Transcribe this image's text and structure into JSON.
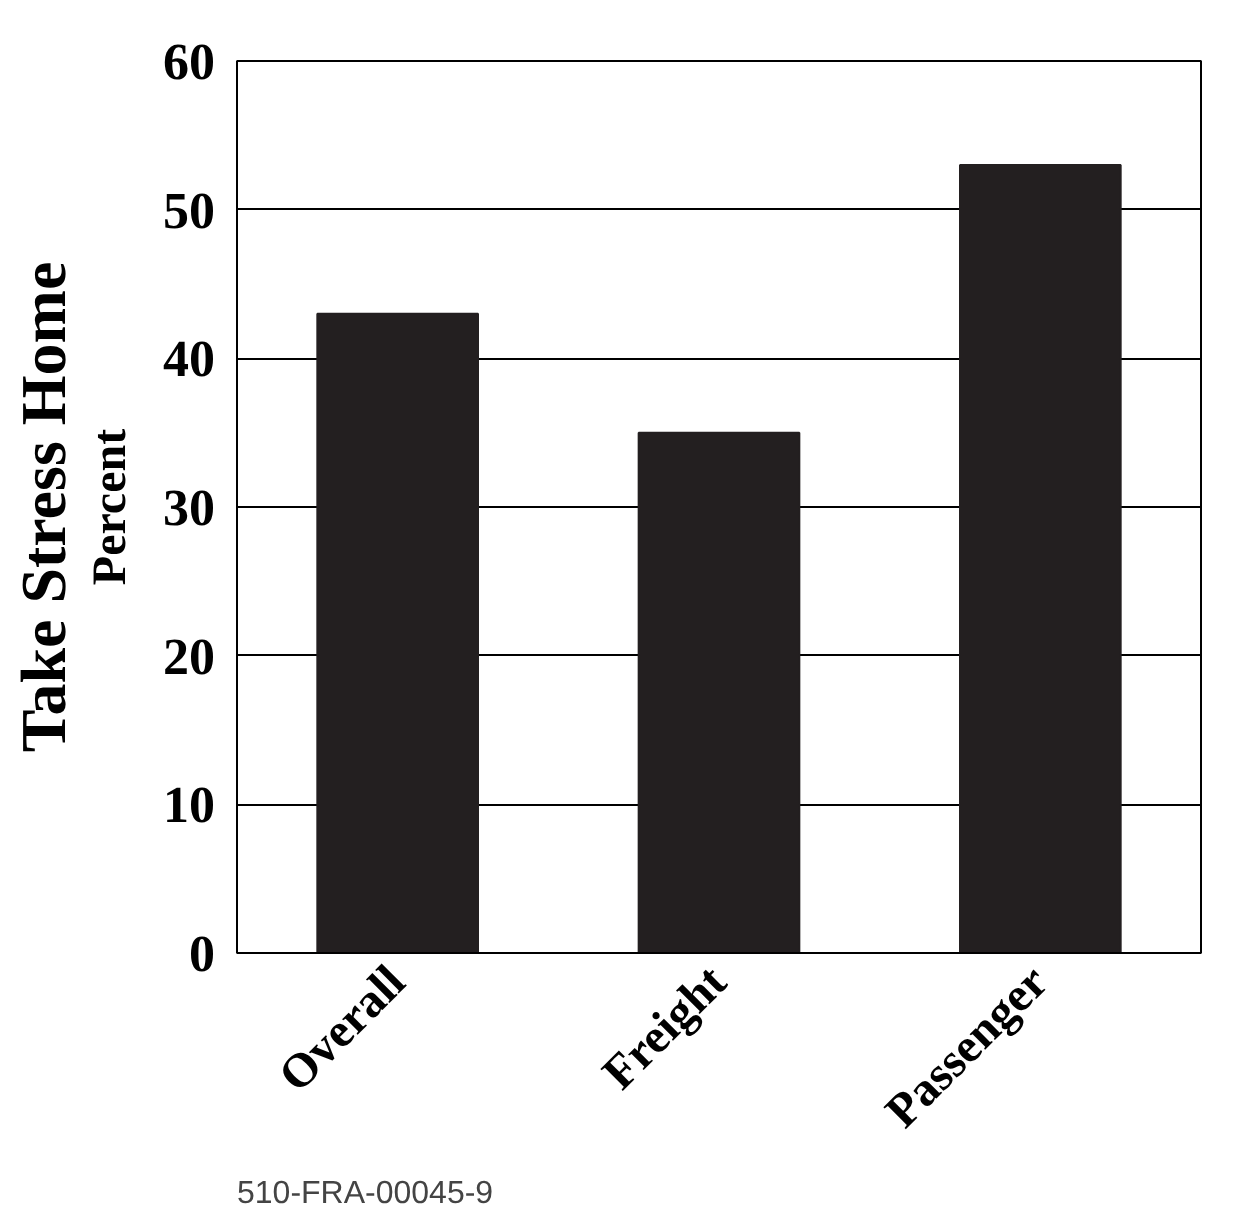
{
  "chart_data": {
    "type": "bar",
    "ylabel": "Take Stress Home",
    "categories": [
      "Overall",
      "Freight",
      "Passenger"
    ],
    "values": [
      43,
      35,
      53
    ],
    "color": "#231f20",
    "ylim": [
      0,
      60
    ],
    "yticks": [
      0,
      10,
      20,
      30,
      40,
      50,
      60
    ],
    "grid": "y",
    "annotations": [
      "Percent",
      "510-FRA-00045-9"
    ]
  }
}
